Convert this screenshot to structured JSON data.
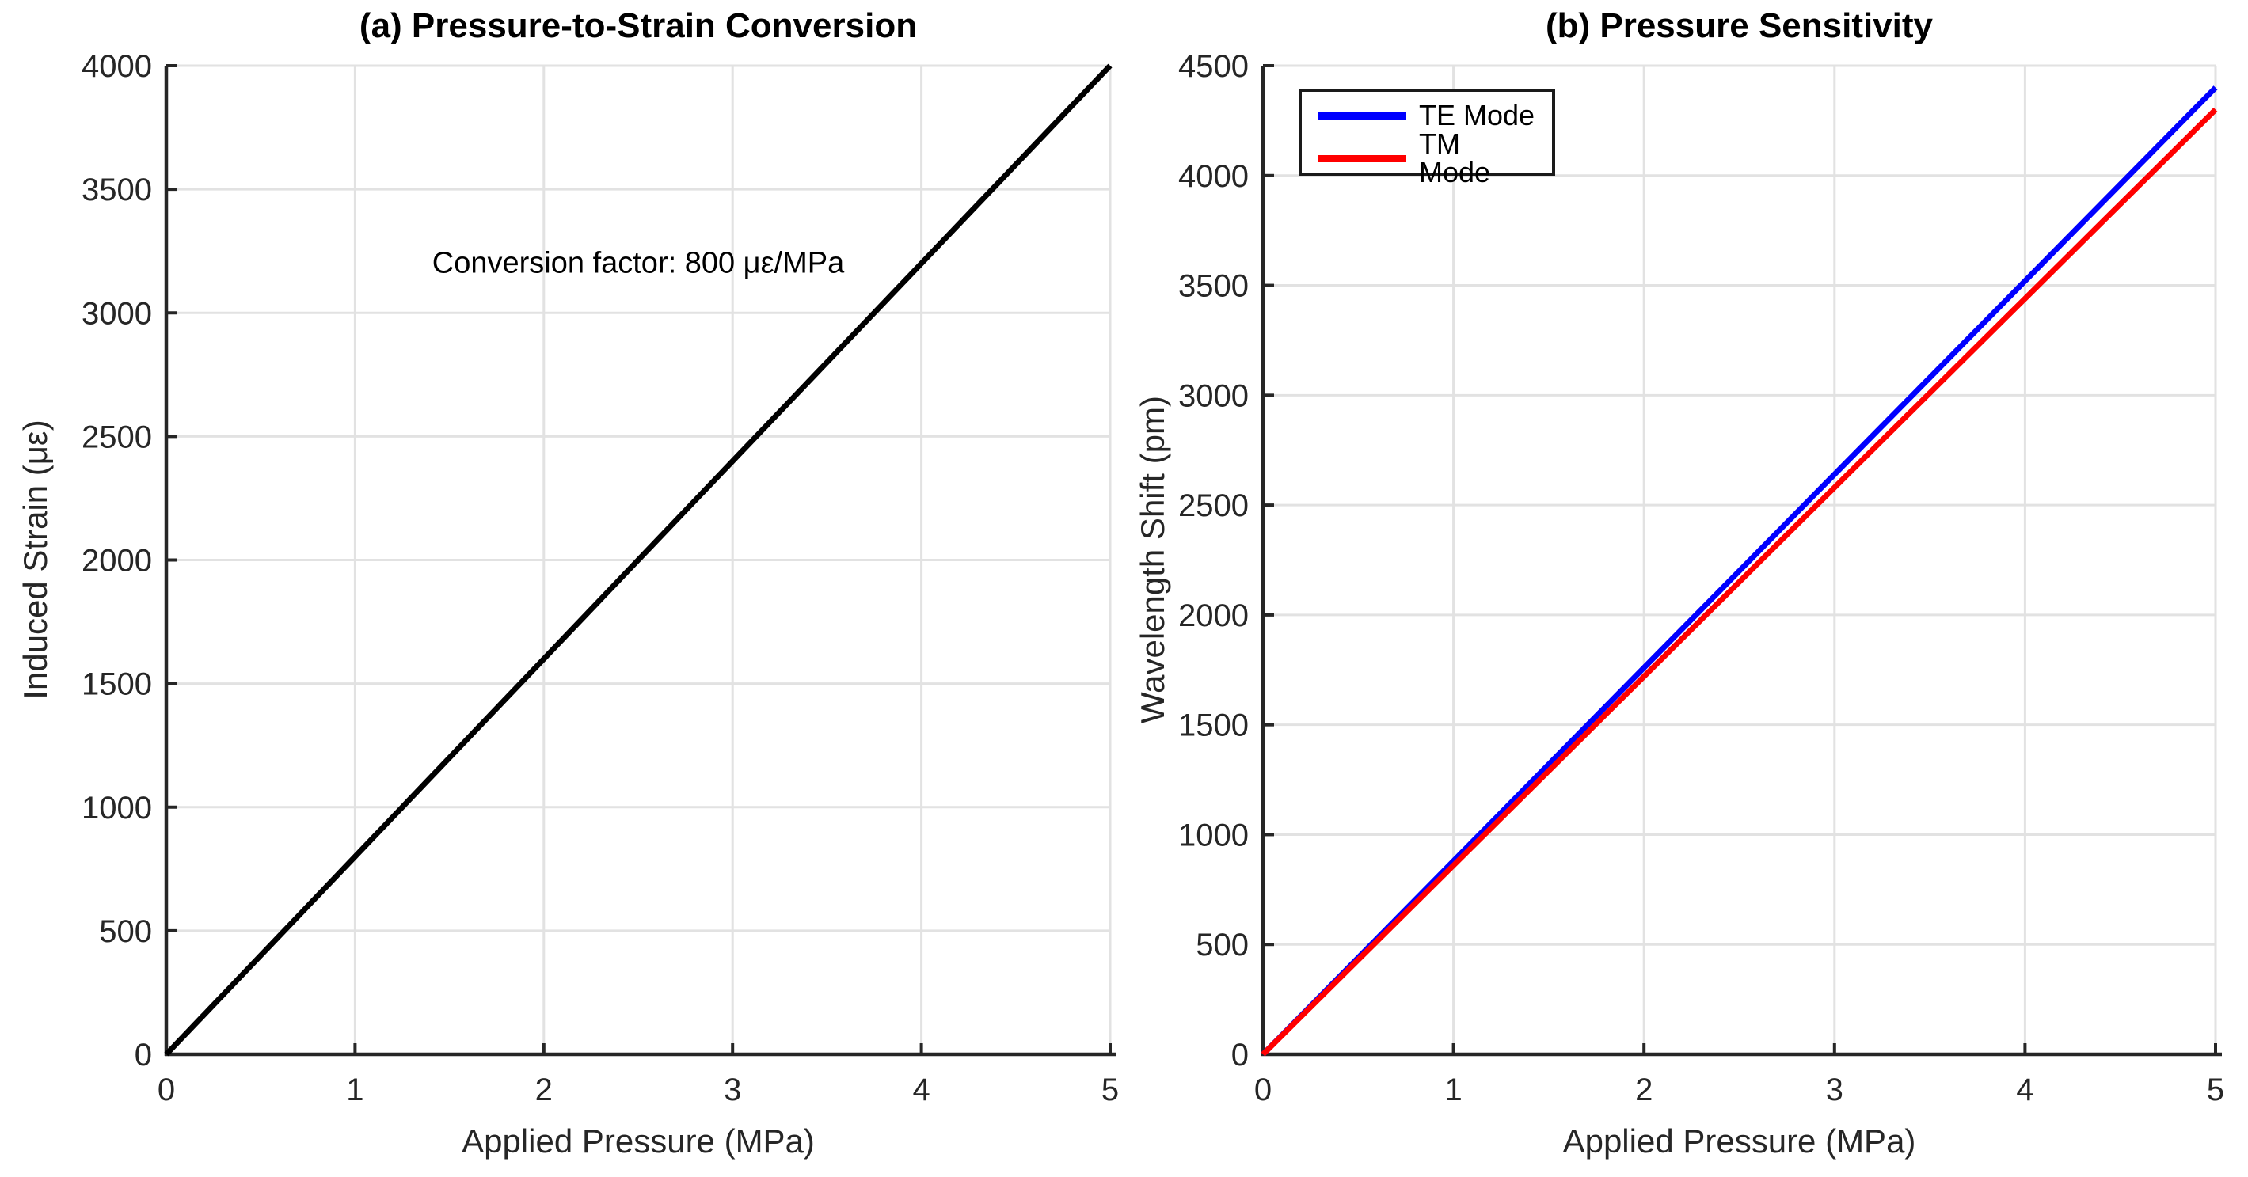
{
  "style": {
    "axis_color": "#262626",
    "grid_color": "#e2e2e2",
    "background": "#ffffff"
  },
  "chart_data": [
    {
      "type": "line",
      "title": "(a) Pressure-to-Strain Conversion",
      "xlabel": "Applied Pressure (MPa)",
      "ylabel": "Induced Strain (με)",
      "xlim": [
        0,
        5
      ],
      "ylim": [
        0,
        4000
      ],
      "xticks": [
        0,
        1,
        2,
        3,
        4,
        5
      ],
      "yticks": [
        0,
        500,
        1000,
        1500,
        2000,
        2500,
        3000,
        3500,
        4000
      ],
      "grid": true,
      "annotation": {
        "text": "Conversion factor: 800 με/MPa",
        "x": 2.5,
        "y": 3200
      },
      "series": [
        {
          "name": "Induced Strain",
          "color": "#000000",
          "x": [
            0,
            1,
            2,
            3,
            4,
            5
          ],
          "values": [
            0,
            800,
            1600,
            2400,
            3200,
            4000
          ]
        }
      ]
    },
    {
      "type": "line",
      "title": "(b) Pressure Sensitivity",
      "xlabel": "Applied Pressure (MPa)",
      "ylabel": "Wavelength Shift (pm)",
      "xlim": [
        0,
        5
      ],
      "ylim": [
        0,
        4500
      ],
      "xticks": [
        0,
        1,
        2,
        3,
        4,
        5
      ],
      "yticks": [
        0,
        500,
        1000,
        1500,
        2000,
        2500,
        3000,
        3500,
        4000,
        4500
      ],
      "grid": true,
      "legend": {
        "position": "top-left",
        "entries": [
          "TE Mode",
          "TM Mode"
        ]
      },
      "series": [
        {
          "name": "TE Mode",
          "color": "#0000ff",
          "x": [
            0,
            1,
            2,
            3,
            4,
            5
          ],
          "values": [
            0,
            880,
            1760,
            2640,
            3520,
            4400
          ]
        },
        {
          "name": "TM Mode",
          "color": "#ff0000",
          "x": [
            0,
            1,
            2,
            3,
            4,
            5
          ],
          "values": [
            0,
            860,
            1720,
            2580,
            3440,
            4300
          ]
        }
      ]
    }
  ]
}
